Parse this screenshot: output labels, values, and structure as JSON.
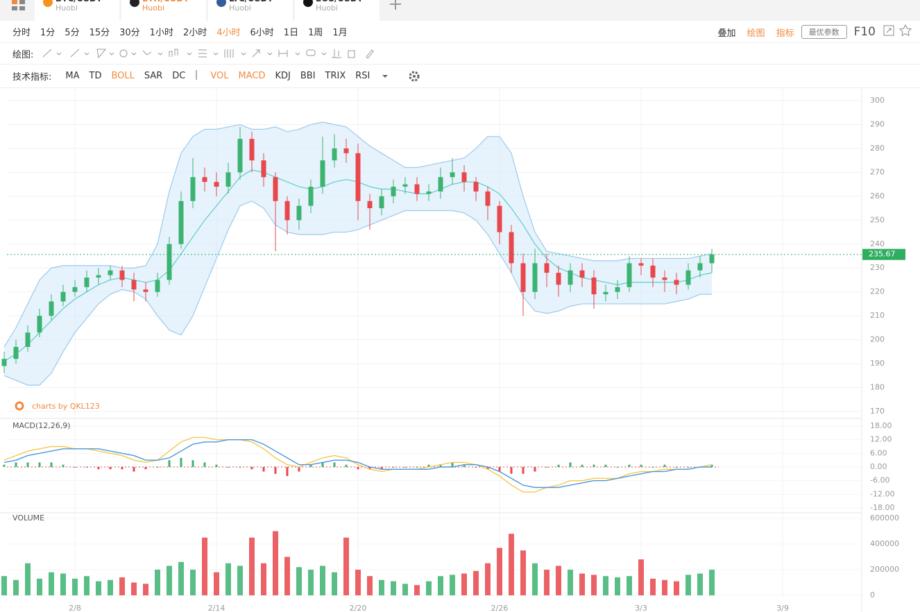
{
  "tabs": [
    {
      "pair": "BTC/USDT",
      "exchange": "Huobi",
      "icon": "#f7931a"
    },
    {
      "pair": "ETH/USDT",
      "exchange": "Huobi",
      "icon": "#222222",
      "active": true
    },
    {
      "pair": "LTC/USDT",
      "exchange": "Huobi",
      "icon": "#345d9d"
    },
    {
      "pair": "EOS/USDT",
      "exchange": "Huobi",
      "icon": "#111111"
    }
  ],
  "toolbar": {
    "intervals": [
      {
        "label": "分时"
      },
      {
        "label": "1分"
      },
      {
        "label": "5分"
      },
      {
        "label": "15分"
      },
      {
        "label": "30分"
      },
      {
        "label": "1小时"
      },
      {
        "label": "2小时"
      },
      {
        "label": "4小时",
        "active": true
      },
      {
        "label": "6小时"
      },
      {
        "label": "1日"
      },
      {
        "label": "1周"
      },
      {
        "label": "1月"
      }
    ],
    "right_tools": [
      {
        "label": "叠加"
      },
      {
        "label": "绘图",
        "active": true
      },
      {
        "label": "指标",
        "active": true
      }
    ],
    "best_params": "最优参数",
    "f10": "F10"
  },
  "drawing_label": "绘图:",
  "indicator_label": "技术指标:",
  "indicators_main": [
    {
      "label": "MA"
    },
    {
      "label": "TD"
    },
    {
      "label": "BOLL",
      "active": true
    },
    {
      "label": "SAR"
    },
    {
      "label": "DC"
    }
  ],
  "indicators_sub": [
    {
      "label": "VOL",
      "active": true
    },
    {
      "label": "MACD",
      "active": true
    },
    {
      "label": "KDJ"
    },
    {
      "label": "BBI"
    },
    {
      "label": "TRIX"
    },
    {
      "label": "RSI"
    }
  ],
  "chart_data": {
    "type": "candlestick",
    "watermark": "charts by QKL123",
    "up_color": "#3cb371",
    "down_color": "#e8474b",
    "categories": [
      null,
      null,
      null,
      null,
      null,
      null,
      "2/8",
      null,
      null,
      null,
      null,
      null,
      null,
      null,
      null,
      null,
      null,
      null,
      "2/14",
      null,
      null,
      null,
      null,
      null,
      null,
      null,
      null,
      null,
      null,
      null,
      "2/20",
      null,
      null,
      null,
      null,
      null,
      null,
      null,
      null,
      null,
      null,
      null,
      "2/26",
      null,
      null,
      null,
      null,
      null,
      null,
      null,
      null,
      null,
      null,
      null,
      "3/3",
      null,
      null,
      null,
      null,
      null,
      null,
      null,
      null,
      null,
      null,
      null,
      "3/9"
    ],
    "open": [
      189,
      192,
      197,
      203,
      210,
      216,
      220,
      222,
      226,
      227,
      229,
      225,
      221,
      220,
      225,
      240,
      258,
      268,
      266,
      264,
      270,
      284,
      275,
      268,
      258,
      250,
      256,
      264,
      275,
      280,
      278,
      258,
      255,
      260,
      264,
      265,
      261,
      262,
      268,
      270,
      266,
      262,
      256,
      245,
      232,
      220,
      232,
      228,
      223,
      229,
      226,
      219,
      220,
      222,
      232,
      231,
      226,
      225,
      223,
      229,
      232,
      null,
      null,
      null,
      null,
      null,
      null
    ],
    "high": [
      195,
      200,
      206,
      213,
      219,
      223,
      225,
      229,
      230,
      231,
      231,
      228,
      224,
      228,
      243,
      262,
      276,
      272,
      270,
      274,
      289,
      287,
      278,
      270,
      260,
      259,
      267,
      285,
      286,
      284,
      282,
      261,
      263,
      267,
      268,
      268,
      265,
      272,
      276,
      273,
      268,
      264,
      258,
      248,
      236,
      238,
      236,
      231,
      232,
      232,
      229,
      223,
      225,
      235,
      234,
      234,
      229,
      228,
      232,
      235,
      238,
      null,
      null,
      null,
      null,
      null,
      null
    ],
    "low": [
      186,
      190,
      195,
      201,
      208,
      214,
      218,
      220,
      223,
      225,
      222,
      216,
      216,
      218,
      223,
      238,
      255,
      262,
      260,
      261,
      267,
      270,
      264,
      237,
      244,
      246,
      253,
      261,
      272,
      274,
      250,
      246,
      252,
      257,
      261,
      258,
      258,
      259,
      265,
      262,
      258,
      250,
      240,
      228,
      210,
      217,
      222,
      218,
      220,
      222,
      213,
      216,
      217,
      220,
      227,
      222,
      220,
      219,
      221,
      226,
      228,
      null,
      null,
      null,
      null,
      null,
      null
    ],
    "close": [
      192,
      197,
      203,
      210,
      216,
      220,
      222,
      226,
      227,
      229,
      225,
      221,
      220,
      225,
      240,
      258,
      268,
      266,
      264,
      270,
      284,
      275,
      268,
      258,
      250,
      256,
      264,
      275,
      280,
      278,
      258,
      255,
      260,
      264,
      265,
      261,
      262,
      268,
      270,
      266,
      262,
      256,
      245,
      232,
      220,
      232,
      228,
      223,
      229,
      226,
      219,
      220,
      222,
      232,
      231,
      226,
      225,
      223,
      229,
      232,
      235.67,
      null,
      null,
      null,
      null,
      null,
      null
    ],
    "last_price": 235.67,
    "ylim": [
      170,
      300
    ],
    "yticks": [
      170,
      180,
      190,
      200,
      210,
      220,
      230,
      240,
      250,
      260,
      270,
      280,
      290,
      300
    ],
    "boll": {
      "upper_color": "#9cc9ea",
      "mid_color": "#5ccbc8",
      "fill": "#d6ebfb",
      "upper": [
        197,
        205,
        215,
        225,
        230,
        231,
        231,
        231,
        231,
        231,
        230,
        230,
        231,
        240,
        262,
        278,
        285,
        288,
        288,
        289,
        290,
        288,
        288,
        289,
        287,
        288,
        290,
        291,
        290,
        289,
        285,
        281,
        278,
        275,
        272,
        272,
        273,
        274,
        275,
        276,
        280,
        285,
        285,
        278,
        260,
        245,
        237,
        236,
        235,
        234,
        233,
        233,
        233,
        234,
        234,
        234,
        234,
        234,
        234,
        235,
        236,
        null,
        null,
        null,
        null,
        null,
        null
      ],
      "mid": [
        191,
        194,
        198,
        203,
        208,
        213,
        217,
        220,
        223,
        225,
        226,
        225,
        224,
        225,
        229,
        236,
        243,
        250,
        256,
        262,
        268,
        271,
        270,
        268,
        266,
        264,
        263,
        264,
        266,
        267,
        266,
        264,
        263,
        263,
        262,
        261,
        261,
        263,
        265,
        266,
        266,
        264,
        261,
        255,
        248,
        240,
        234,
        230,
        228,
        226,
        225,
        224,
        223,
        224,
        224,
        224,
        224,
        224,
        225,
        227,
        228,
        null,
        null,
        null,
        null,
        null,
        null
      ],
      "lower": [
        185,
        183,
        181,
        181,
        186,
        195,
        203,
        209,
        215,
        219,
        221,
        220,
        217,
        210,
        204,
        202,
        210,
        222,
        234,
        246,
        256,
        258,
        255,
        248,
        245,
        244,
        244,
        244,
        245,
        245,
        246,
        248,
        250,
        252,
        254,
        254,
        254,
        254,
        254,
        253,
        250,
        244,
        236,
        228,
        218,
        212,
        211,
        212,
        214,
        215,
        215,
        215,
        215,
        215,
        215,
        215,
        215,
        216,
        217,
        219,
        219,
        null,
        null,
        null,
        null,
        null,
        null
      ]
    },
    "macd": {
      "title": "MACD(12,26,9)",
      "dif_color": "#f4c84a",
      "dea_color": "#4a97dc",
      "ylim": [
        -18,
        18
      ],
      "yticks": [
        {
          "value": -18,
          "label": "-18.00"
        },
        {
          "value": -12,
          "label": "-12.00"
        },
        {
          "value": -6,
          "label": "-6.00"
        },
        {
          "value": 0,
          "label": "0.00"
        },
        {
          "value": 6,
          "label": "6.00"
        },
        {
          "value": 12,
          "label": "12.00"
        },
        {
          "value": 18,
          "label": "18.00"
        }
      ],
      "dif": [
        3,
        5,
        7,
        8,
        9,
        9,
        8,
        8,
        7,
        6,
        5,
        3,
        2,
        3,
        7,
        11,
        13,
        13,
        12,
        12,
        12,
        11,
        8,
        4,
        1,
        0,
        2,
        4,
        5,
        4,
        1,
        -1,
        -2,
        -1,
        -1,
        -1,
        0,
        1,
        2,
        2,
        1,
        -1,
        -4,
        -8,
        -11,
        -11,
        -9,
        -8,
        -6,
        -6,
        -5,
        -5,
        -5,
        -3,
        -2,
        -2,
        -1,
        -1,
        -1,
        0,
        1,
        null,
        null,
        null,
        null,
        null,
        null
      ],
      "dea": [
        2,
        3,
        5,
        6,
        7,
        8,
        8,
        8,
        8,
        7,
        6,
        5,
        3,
        3,
        4,
        7,
        10,
        11,
        11,
        12,
        12,
        12,
        10,
        7,
        4,
        1,
        1,
        2,
        3,
        3,
        2,
        0,
        -1,
        -1,
        -1,
        -1,
        -1,
        0,
        0,
        1,
        1,
        0,
        -2,
        -5,
        -8,
        -9,
        -9,
        -9,
        -8,
        -7,
        -6,
        -6,
        -5,
        -4,
        -3,
        -2,
        -2,
        -1,
        -1,
        0,
        0,
        null,
        null,
        null,
        null,
        null,
        null
      ],
      "hist": [
        1,
        2,
        2,
        2,
        2,
        1,
        0,
        0,
        -1,
        -1,
        -1,
        -2,
        -1,
        0,
        3,
        4,
        3,
        2,
        1,
        0,
        0,
        -1,
        -2,
        -3,
        -4,
        -2,
        1,
        2,
        2,
        1,
        -1,
        -1,
        -1,
        0,
        0,
        0,
        1,
        1,
        2,
        1,
        0,
        -1,
        -2,
        -3,
        -3,
        -2,
        0,
        1,
        2,
        1,
        1,
        1,
        0,
        1,
        1,
        0,
        1,
        0,
        0,
        0,
        1,
        null,
        null,
        null,
        null,
        null,
        null
      ]
    },
    "volume_panel": {
      "title": "VOLUME",
      "ylim": [
        0,
        600000
      ],
      "yticks": [
        0,
        200000,
        400000,
        600000
      ]
    },
    "volume": [
      150000,
      120000,
      250000,
      130000,
      180000,
      170000,
      130000,
      150000,
      110000,
      120000,
      140000,
      100000,
      90000,
      200000,
      230000,
      260000,
      200000,
      450000,
      180000,
      250000,
      230000,
      450000,
      250000,
      500000,
      300000,
      220000,
      200000,
      230000,
      180000,
      450000,
      200000,
      150000,
      120000,
      110000,
      90000,
      80000,
      110000,
      150000,
      160000,
      170000,
      190000,
      250000,
      370000,
      480000,
      350000,
      250000,
      200000,
      230000,
      200000,
      170000,
      160000,
      150000,
      140000,
      150000,
      280000,
      130000,
      120000,
      110000,
      160000,
      170000,
      200000,
      null,
      null,
      null,
      null,
      null,
      null
    ]
  }
}
